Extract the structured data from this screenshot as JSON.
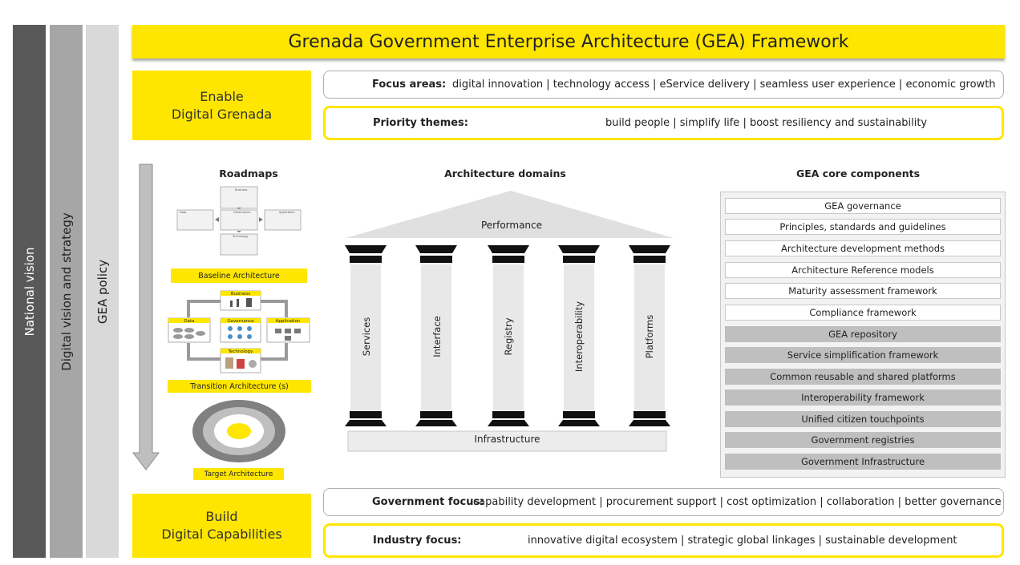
{
  "colors": {
    "accent_yellow": "#ffe600",
    "dark_grey": "#595959",
    "mid_grey": "#a6a6a6",
    "light_grey": "#d9d9d9"
  },
  "sidebars": [
    "National vision",
    "Digital vision and strategy",
    "GEA policy"
  ],
  "title": "Grenada Government Enterprise Architecture (GEA) Framework",
  "enable_box": {
    "line1": "Enable",
    "line2": "Digital Grenada"
  },
  "build_box": {
    "line1": "Build",
    "line2": "Digital Capabilities"
  },
  "focus_areas": {
    "label": "Focus areas:",
    "text": "digital innovation | technology access | eService delivery | seamless user experience | economic growth"
  },
  "priority_themes": {
    "label": "Priority themes:",
    "text": "build people | simplify life | boost resiliency and sustainability"
  },
  "government_focus": {
    "label": "Government focus:",
    "text": "capability development | procurement support | cost optimization | collaboration | better governance"
  },
  "industry_focus": {
    "label": "Industry focus:",
    "text": "innovative digital ecosystem | strategic global linkages | sustainable development"
  },
  "roadmaps": {
    "heading": "Roadmaps",
    "baseline": "Baseline Architecture",
    "transition": "Transition Architecture (s)",
    "target": "Target Architecture",
    "baseline_small_labels": [
      "Business",
      "Data",
      "Governance",
      "Application",
      "Technology"
    ],
    "transition_labels": [
      "Business",
      "Data",
      "Governance",
      "Application",
      "Technology"
    ]
  },
  "architecture": {
    "heading": "Architecture domains",
    "roof": "Performance",
    "pillars": [
      "Services",
      "Interface",
      "Registry",
      "Interoperability",
      "Platforms"
    ],
    "base": "Infrastructure"
  },
  "core": {
    "heading": "GEA core components",
    "white_items": [
      "GEA governance",
      "Principles, standards and guidelines",
      "Architecture development methods",
      "Architecture Reference models",
      "Maturity assessment framework",
      "Compliance framework"
    ],
    "grey_items": [
      "GEA repository",
      "Service simplification framework",
      "Common reusable and shared platforms",
      "Interoperability framework",
      "Unified citizen touchpoints",
      "Government registries",
      "Government Infrastructure"
    ]
  }
}
